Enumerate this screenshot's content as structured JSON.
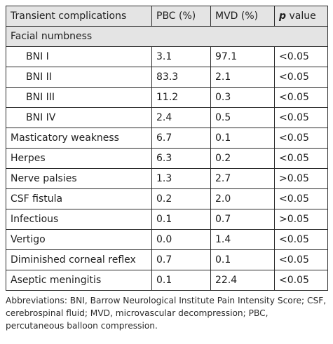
{
  "table": {
    "headers": {
      "col1": "Transient complications",
      "col2": "PBC (%)",
      "col3": "MVD (%)",
      "col4_italic": "p",
      "col4_rest": " value"
    },
    "section_label": "Facial numbness",
    "sub_rows": [
      {
        "label": "BNI I",
        "pbc": "3.1",
        "mvd": "97.1",
        "p": "<0.05"
      },
      {
        "label": "BNI II",
        "pbc": "83.3",
        "mvd": "2.1",
        "p": "<0.05"
      },
      {
        "label": "BNI III",
        "pbc": "11.2",
        "mvd": "0.3",
        "p": "<0.05"
      },
      {
        "label": "BNI IV",
        "pbc": "2.4",
        "mvd": "0.5",
        "p": "<0.05"
      }
    ],
    "rows": [
      {
        "label": "Masticatory weakness",
        "pbc": "6.7",
        "mvd": "0.1",
        "p": "<0.05"
      },
      {
        "label": "Herpes",
        "pbc": "6.3",
        "mvd": "0.2",
        "p": "<0.05"
      },
      {
        "label": "Nerve palsies",
        "pbc": "1.3",
        "mvd": "2.7",
        "p": ">0.05"
      },
      {
        "label": "CSF fistula",
        "pbc": "0.2",
        "mvd": "2.0",
        "p": "<0.05"
      },
      {
        "label": "Infectious",
        "pbc": "0.1",
        "mvd": "0.7",
        "p": ">0.05"
      },
      {
        "label": "Vertigo",
        "pbc": "0.0",
        "mvd": "1.4",
        "p": "<0.05"
      },
      {
        "label": "Diminished corneal reflex",
        "pbc": "0.7",
        "mvd": "0.1",
        "p": "<0.05"
      },
      {
        "label": "Aseptic meningitis",
        "pbc": "0.1",
        "mvd": "22.4",
        "p": "<0.05"
      }
    ]
  },
  "footnote": "Abbreviations: BNI, Barrow Neurological Institute Pain Intensity Score; CSF, cerebrospinal fluid; MVD, microvascular decompression; PBC, percutaneous balloon compression."
}
